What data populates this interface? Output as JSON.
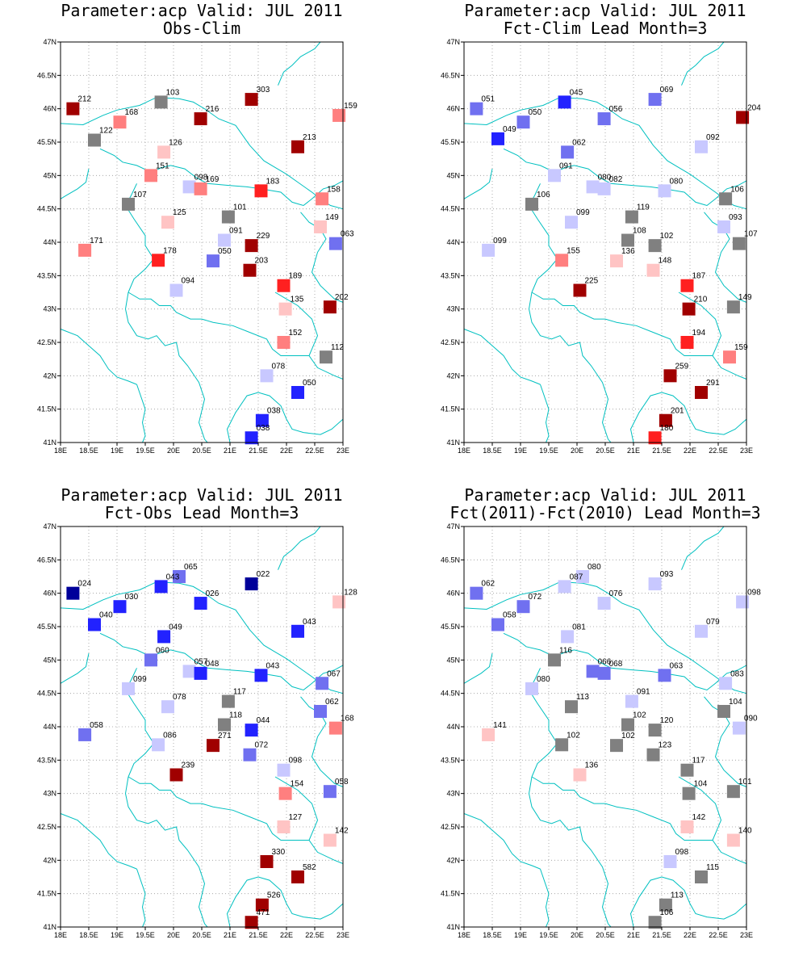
{
  "lon_ticks": [
    "18E",
    "18.5E",
    "19E",
    "19.5E",
    "20E",
    "20.5E",
    "21E",
    "21.5E",
    "22E",
    "22.5E",
    "23E"
  ],
  "lat_ticks": [
    "41N",
    "41.5N",
    "42N",
    "42.5N",
    "43N",
    "43.5N",
    "44N",
    "44.5N",
    "45N",
    "45.5N",
    "46N",
    "46.5N",
    "47N"
  ],
  "map": {
    "lon_range": [
      18,
      23
    ],
    "lat_range": [
      41,
      47
    ],
    "grid": true,
    "coastline_color": "#00c0c0"
  },
  "colors": {
    "dark_red": "#a00000",
    "red": "#ff2020",
    "salmon": "#ff7f7f",
    "pink": "#ffc4c4",
    "gray": "#808080",
    "light_blue": "#c8c8ff",
    "medium_blue": "#7070f0",
    "blue": "#2222ff",
    "dark_blue": "#00009a"
  },
  "panels": [
    {
      "title_line1": "Parameter:acp Valid: JUL 2011",
      "title_line2": "Obs-Clim",
      "stations": [
        {
          "lon": 18.22,
          "lat": 46.0,
          "label": "212",
          "color": "dark_red"
        },
        {
          "lon": 19.78,
          "lat": 46.1,
          "label": "103",
          "color": "gray"
        },
        {
          "lon": 21.38,
          "lat": 46.14,
          "label": "303",
          "color": "dark_red"
        },
        {
          "lon": 22.93,
          "lat": 45.9,
          "label": "159",
          "color": "salmon"
        },
        {
          "lon": 19.05,
          "lat": 45.8,
          "label": "168",
          "color": "salmon"
        },
        {
          "lon": 20.48,
          "lat": 45.85,
          "label": "216",
          "color": "dark_red"
        },
        {
          "lon": 18.6,
          "lat": 45.53,
          "label": "122",
          "color": "gray"
        },
        {
          "lon": 22.2,
          "lat": 45.43,
          "label": "213",
          "color": "dark_red"
        },
        {
          "lon": 19.83,
          "lat": 45.35,
          "label": "126",
          "color": "pink"
        },
        {
          "lon": 19.6,
          "lat": 45.0,
          "label": "151",
          "color": "salmon"
        },
        {
          "lon": 20.28,
          "lat": 44.83,
          "label": "098",
          "color": "light_blue"
        },
        {
          "lon": 20.48,
          "lat": 44.8,
          "label": "169",
          "color": "salmon"
        },
        {
          "lon": 21.55,
          "lat": 44.77,
          "label": "183",
          "color": "red"
        },
        {
          "lon": 22.63,
          "lat": 44.65,
          "label": "158",
          "color": "salmon"
        },
        {
          "lon": 19.2,
          "lat": 44.57,
          "label": "107",
          "color": "gray"
        },
        {
          "lon": 20.97,
          "lat": 44.38,
          "label": "101",
          "color": "gray"
        },
        {
          "lon": 19.9,
          "lat": 44.3,
          "label": "125",
          "color": "pink"
        },
        {
          "lon": 22.6,
          "lat": 44.23,
          "label": "149",
          "color": "pink"
        },
        {
          "lon": 20.9,
          "lat": 44.03,
          "label": "091",
          "color": "light_blue"
        },
        {
          "lon": 21.38,
          "lat": 43.95,
          "label": "229",
          "color": "dark_red"
        },
        {
          "lon": 22.87,
          "lat": 43.98,
          "label": "063",
          "color": "medium_blue"
        },
        {
          "lon": 18.43,
          "lat": 43.88,
          "label": "171",
          "color": "salmon"
        },
        {
          "lon": 19.73,
          "lat": 43.73,
          "label": "178",
          "color": "red"
        },
        {
          "lon": 20.7,
          "lat": 43.72,
          "label": "050",
          "color": "medium_blue"
        },
        {
          "lon": 21.35,
          "lat": 43.58,
          "label": "203",
          "color": "dark_red"
        },
        {
          "lon": 21.95,
          "lat": 43.35,
          "label": "189",
          "color": "red"
        },
        {
          "lon": 20.05,
          "lat": 43.28,
          "label": "094",
          "color": "light_blue"
        },
        {
          "lon": 21.98,
          "lat": 43.0,
          "label": "135",
          "color": "pink"
        },
        {
          "lon": 22.77,
          "lat": 43.03,
          "label": "202",
          "color": "dark_red"
        },
        {
          "lon": 21.95,
          "lat": 42.5,
          "label": "152",
          "color": "salmon"
        },
        {
          "lon": 22.7,
          "lat": 42.28,
          "label": "112",
          "color": "gray"
        },
        {
          "lon": 21.65,
          "lat": 42.0,
          "label": "078",
          "color": "light_blue"
        },
        {
          "lon": 22.2,
          "lat": 41.75,
          "label": "050",
          "color": "blue"
        },
        {
          "lon": 21.57,
          "lat": 41.33,
          "label": "038",
          "color": "blue"
        },
        {
          "lon": 21.38,
          "lat": 41.07,
          "label": "038",
          "color": "blue"
        }
      ]
    },
    {
      "title_line1": "Parameter:acp Valid: JUL 2011",
      "title_line2": "Fct-Clim Lead Month=3",
      "stations": [
        {
          "lon": 18.22,
          "lat": 46.0,
          "label": "051",
          "color": "medium_blue"
        },
        {
          "lon": 19.78,
          "lat": 46.1,
          "label": "045",
          "color": "blue"
        },
        {
          "lon": 21.38,
          "lat": 46.14,
          "label": "069",
          "color": "medium_blue"
        },
        {
          "lon": 22.93,
          "lat": 45.87,
          "label": "204",
          "color": "dark_red"
        },
        {
          "lon": 19.05,
          "lat": 45.8,
          "label": "050",
          "color": "medium_blue"
        },
        {
          "lon": 20.48,
          "lat": 45.85,
          "label": "056",
          "color": "medium_blue"
        },
        {
          "lon": 18.6,
          "lat": 45.55,
          "label": "049",
          "color": "blue"
        },
        {
          "lon": 22.2,
          "lat": 45.43,
          "label": "092",
          "color": "light_blue"
        },
        {
          "lon": 19.83,
          "lat": 45.35,
          "label": "062",
          "color": "medium_blue"
        },
        {
          "lon": 19.6,
          "lat": 45.0,
          "label": "091",
          "color": "light_blue"
        },
        {
          "lon": 20.28,
          "lat": 44.83,
          "label": "080",
          "color": "light_blue"
        },
        {
          "lon": 20.48,
          "lat": 44.8,
          "label": "082",
          "color": "light_blue"
        },
        {
          "lon": 21.55,
          "lat": 44.77,
          "label": "080",
          "color": "light_blue"
        },
        {
          "lon": 22.63,
          "lat": 44.65,
          "label": "106",
          "color": "gray"
        },
        {
          "lon": 19.2,
          "lat": 44.57,
          "label": "106",
          "color": "gray"
        },
        {
          "lon": 20.97,
          "lat": 44.38,
          "label": "119",
          "color": "gray"
        },
        {
          "lon": 19.9,
          "lat": 44.3,
          "label": "099",
          "color": "light_blue"
        },
        {
          "lon": 22.6,
          "lat": 44.23,
          "label": "093",
          "color": "light_blue"
        },
        {
          "lon": 20.9,
          "lat": 44.03,
          "label": "108",
          "color": "gray"
        },
        {
          "lon": 21.38,
          "lat": 43.95,
          "label": "102",
          "color": "gray"
        },
        {
          "lon": 22.87,
          "lat": 43.98,
          "label": "107",
          "color": "gray"
        },
        {
          "lon": 18.43,
          "lat": 43.88,
          "label": "099",
          "color": "light_blue"
        },
        {
          "lon": 19.73,
          "lat": 43.73,
          "label": "155",
          "color": "salmon"
        },
        {
          "lon": 20.7,
          "lat": 43.72,
          "label": "136",
          "color": "pink"
        },
        {
          "lon": 21.35,
          "lat": 43.58,
          "label": "148",
          "color": "pink"
        },
        {
          "lon": 20.05,
          "lat": 43.28,
          "label": "225",
          "color": "dark_red"
        },
        {
          "lon": 21.95,
          "lat": 43.35,
          "label": "187",
          "color": "red"
        },
        {
          "lon": 21.98,
          "lat": 43.0,
          "label": "210",
          "color": "dark_red"
        },
        {
          "lon": 22.77,
          "lat": 43.03,
          "label": "149",
          "color": "gray"
        },
        {
          "lon": 21.95,
          "lat": 42.5,
          "label": "194",
          "color": "red"
        },
        {
          "lon": 22.7,
          "lat": 42.28,
          "label": "159",
          "color": "salmon"
        },
        {
          "lon": 21.65,
          "lat": 42.0,
          "label": "259",
          "color": "dark_red"
        },
        {
          "lon": 22.2,
          "lat": 41.75,
          "label": "291",
          "color": "dark_red"
        },
        {
          "lon": 21.57,
          "lat": 41.33,
          "label": "201",
          "color": "dark_red"
        },
        {
          "lon": 21.38,
          "lat": 41.07,
          "label": "180",
          "color": "red"
        }
      ]
    },
    {
      "title_line1": "Parameter:acp Valid: JUL 2011",
      "title_line2": "Fct-Obs Lead Month=3",
      "stations": [
        {
          "lon": 18.22,
          "lat": 46.0,
          "label": "024",
          "color": "dark_blue"
        },
        {
          "lon": 20.1,
          "lat": 46.25,
          "label": "065",
          "color": "medium_blue"
        },
        {
          "lon": 19.78,
          "lat": 46.1,
          "label": "043",
          "color": "blue"
        },
        {
          "lon": 21.38,
          "lat": 46.14,
          "label": "022",
          "color": "dark_blue"
        },
        {
          "lon": 22.93,
          "lat": 45.87,
          "label": "128",
          "color": "pink"
        },
        {
          "lon": 19.05,
          "lat": 45.8,
          "label": "030",
          "color": "blue"
        },
        {
          "lon": 20.48,
          "lat": 45.85,
          "label": "026",
          "color": "blue"
        },
        {
          "lon": 18.6,
          "lat": 45.53,
          "label": "040",
          "color": "blue"
        },
        {
          "lon": 22.2,
          "lat": 45.43,
          "label": "043",
          "color": "blue"
        },
        {
          "lon": 19.83,
          "lat": 45.35,
          "label": "049",
          "color": "blue"
        },
        {
          "lon": 19.6,
          "lat": 45.0,
          "label": "060",
          "color": "medium_blue"
        },
        {
          "lon": 20.28,
          "lat": 44.83,
          "label": "057",
          "color": "light_blue"
        },
        {
          "lon": 20.48,
          "lat": 44.8,
          "label": "048",
          "color": "blue"
        },
        {
          "lon": 21.55,
          "lat": 44.77,
          "label": "043",
          "color": "blue"
        },
        {
          "lon": 22.63,
          "lat": 44.65,
          "label": "067",
          "color": "medium_blue"
        },
        {
          "lon": 19.2,
          "lat": 44.57,
          "label": "099",
          "color": "light_blue"
        },
        {
          "lon": 20.97,
          "lat": 44.38,
          "label": "117",
          "color": "gray"
        },
        {
          "lon": 19.9,
          "lat": 44.3,
          "label": "078",
          "color": "light_blue"
        },
        {
          "lon": 22.6,
          "lat": 44.23,
          "label": "062",
          "color": "medium_blue"
        },
        {
          "lon": 20.9,
          "lat": 44.03,
          "label": "118",
          "color": "gray"
        },
        {
          "lon": 21.38,
          "lat": 43.95,
          "label": "044",
          "color": "blue"
        },
        {
          "lon": 22.87,
          "lat": 43.98,
          "label": "168",
          "color": "salmon"
        },
        {
          "lon": 18.43,
          "lat": 43.88,
          "label": "058",
          "color": "medium_blue"
        },
        {
          "lon": 19.73,
          "lat": 43.73,
          "label": "086",
          "color": "light_blue"
        },
        {
          "lon": 20.7,
          "lat": 43.72,
          "label": "271",
          "color": "dark_red"
        },
        {
          "lon": 21.35,
          "lat": 43.58,
          "label": "072",
          "color": "medium_blue"
        },
        {
          "lon": 20.05,
          "lat": 43.28,
          "label": "239",
          "color": "dark_red"
        },
        {
          "lon": 21.95,
          "lat": 43.35,
          "label": "098",
          "color": "light_blue"
        },
        {
          "lon": 21.98,
          "lat": 43.0,
          "label": "154",
          "color": "salmon"
        },
        {
          "lon": 22.77,
          "lat": 43.03,
          "label": "058",
          "color": "medium_blue"
        },
        {
          "lon": 21.95,
          "lat": 42.5,
          "label": "127",
          "color": "pink"
        },
        {
          "lon": 22.77,
          "lat": 42.3,
          "label": "142",
          "color": "pink"
        },
        {
          "lon": 21.65,
          "lat": 41.98,
          "label": "330",
          "color": "dark_red"
        },
        {
          "lon": 22.2,
          "lat": 41.75,
          "label": "582",
          "color": "dark_red"
        },
        {
          "lon": 21.57,
          "lat": 41.33,
          "label": "526",
          "color": "dark_red"
        },
        {
          "lon": 21.38,
          "lat": 41.07,
          "label": "471",
          "color": "dark_red"
        }
      ]
    },
    {
      "title_line1": "Parameter:acp Valid: JUL 2011",
      "title_line2": "Fct(2011)-Fct(2010) Lead Month=3",
      "stations": [
        {
          "lon": 18.22,
          "lat": 46.0,
          "label": "062",
          "color": "medium_blue"
        },
        {
          "lon": 20.1,
          "lat": 46.25,
          "label": "080",
          "color": "light_blue"
        },
        {
          "lon": 19.78,
          "lat": 46.1,
          "label": "087",
          "color": "light_blue"
        },
        {
          "lon": 21.38,
          "lat": 46.14,
          "label": "093",
          "color": "light_blue"
        },
        {
          "lon": 22.93,
          "lat": 45.87,
          "label": "098",
          "color": "light_blue"
        },
        {
          "lon": 19.05,
          "lat": 45.8,
          "label": "072",
          "color": "medium_blue"
        },
        {
          "lon": 20.48,
          "lat": 45.85,
          "label": "076",
          "color": "light_blue"
        },
        {
          "lon": 18.6,
          "lat": 45.53,
          "label": "058",
          "color": "medium_blue"
        },
        {
          "lon": 22.2,
          "lat": 45.43,
          "label": "079",
          "color": "light_blue"
        },
        {
          "lon": 19.83,
          "lat": 45.35,
          "label": "081",
          "color": "light_blue"
        },
        {
          "lon": 19.6,
          "lat": 45.0,
          "label": "116",
          "color": "gray"
        },
        {
          "lon": 20.28,
          "lat": 44.83,
          "label": "066",
          "color": "medium_blue"
        },
        {
          "lon": 20.48,
          "lat": 44.8,
          "label": "068",
          "color": "medium_blue"
        },
        {
          "lon": 21.55,
          "lat": 44.77,
          "label": "063",
          "color": "medium_blue"
        },
        {
          "lon": 22.63,
          "lat": 44.65,
          "label": "083",
          "color": "light_blue"
        },
        {
          "lon": 19.2,
          "lat": 44.57,
          "label": "080",
          "color": "light_blue"
        },
        {
          "lon": 20.97,
          "lat": 44.38,
          "label": "091",
          "color": "light_blue"
        },
        {
          "lon": 19.9,
          "lat": 44.3,
          "label": "113",
          "color": "gray"
        },
        {
          "lon": 22.6,
          "lat": 44.23,
          "label": "104",
          "color": "gray"
        },
        {
          "lon": 20.9,
          "lat": 44.03,
          "label": "102",
          "color": "gray"
        },
        {
          "lon": 21.38,
          "lat": 43.95,
          "label": "120",
          "color": "gray"
        },
        {
          "lon": 22.87,
          "lat": 43.98,
          "label": "090",
          "color": "light_blue"
        },
        {
          "lon": 18.43,
          "lat": 43.88,
          "label": "141",
          "color": "pink"
        },
        {
          "lon": 19.73,
          "lat": 43.73,
          "label": "102",
          "color": "gray"
        },
        {
          "lon": 20.7,
          "lat": 43.72,
          "label": "102",
          "color": "gray"
        },
        {
          "lon": 21.35,
          "lat": 43.58,
          "label": "123",
          "color": "gray"
        },
        {
          "lon": 20.05,
          "lat": 43.28,
          "label": "136",
          "color": "pink"
        },
        {
          "lon": 21.95,
          "lat": 43.35,
          "label": "117",
          "color": "gray"
        },
        {
          "lon": 21.98,
          "lat": 43.0,
          "label": "104",
          "color": "gray"
        },
        {
          "lon": 22.77,
          "lat": 43.03,
          "label": "101",
          "color": "gray"
        },
        {
          "lon": 21.95,
          "lat": 42.5,
          "label": "142",
          "color": "pink"
        },
        {
          "lon": 22.77,
          "lat": 42.3,
          "label": "140",
          "color": "pink"
        },
        {
          "lon": 21.65,
          "lat": 41.98,
          "label": "098",
          "color": "light_blue"
        },
        {
          "lon": 22.2,
          "lat": 41.75,
          "label": "115",
          "color": "gray"
        },
        {
          "lon": 21.57,
          "lat": 41.33,
          "label": "113",
          "color": "gray"
        },
        {
          "lon": 21.38,
          "lat": 41.07,
          "label": "106",
          "color": "gray"
        }
      ]
    }
  ]
}
